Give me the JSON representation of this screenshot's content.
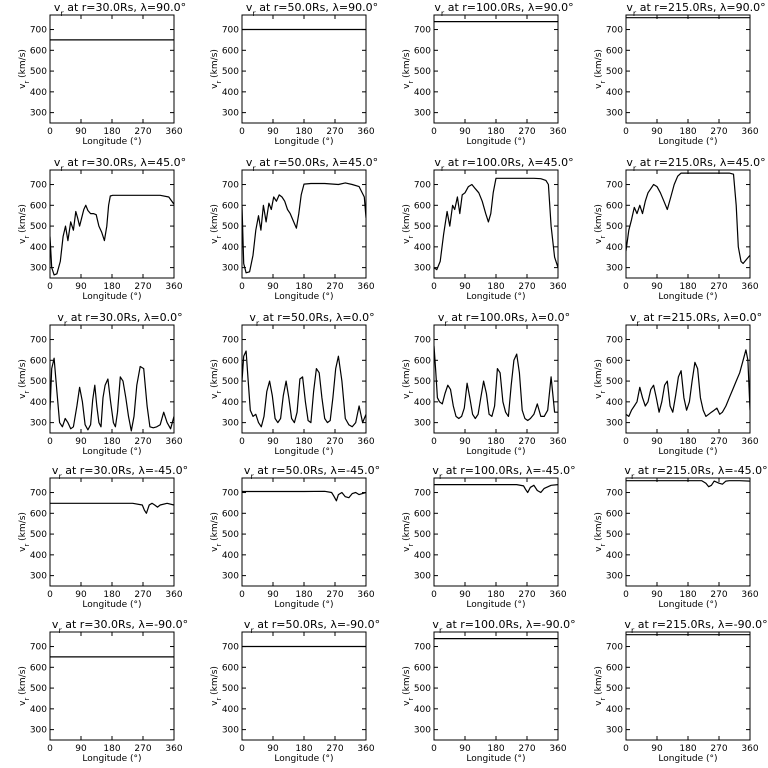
{
  "axes": {
    "xlabel": "Longitude (°)",
    "ylabel": "v_r (km/s)",
    "xlim": [
      0,
      360
    ],
    "ylim": [
      250,
      770
    ],
    "xticks": [
      0,
      90,
      180,
      270,
      360
    ],
    "yticks": [
      300,
      400,
      500,
      600,
      700
    ]
  },
  "chart_data": [
    {
      "type": "line",
      "title": "vr at r=30.0Rs, λ=90.0°",
      "x": [
        0,
        360
      ],
      "y": [
        650,
        650
      ]
    },
    {
      "type": "line",
      "title": "vr at r=50.0Rs, λ=90.0°",
      "x": [
        0,
        360
      ],
      "y": [
        700,
        700
      ]
    },
    {
      "type": "line",
      "title": "vr at r=100.0Rs, λ=90.0°",
      "x": [
        0,
        360
      ],
      "y": [
        738,
        738
      ]
    },
    {
      "type": "line",
      "title": "vr at r=215.0Rs, λ=90.0°",
      "x": [
        0,
        360
      ],
      "y": [
        757,
        757
      ]
    },
    {
      "type": "line",
      "title": "vr at r=30.0Rs, λ=45.0°",
      "x": [
        0,
        5,
        12,
        20,
        30,
        38,
        45,
        52,
        60,
        68,
        75,
        80,
        86,
        92,
        98,
        104,
        110,
        118,
        126,
        134,
        142,
        150,
        158,
        165,
        170,
        175,
        182,
        195,
        230,
        280,
        320,
        345,
        360
      ],
      "y": [
        450,
        300,
        265,
        270,
        330,
        450,
        500,
        430,
        520,
        480,
        570,
        540,
        500,
        540,
        580,
        600,
        575,
        560,
        560,
        555,
        500,
        470,
        430,
        500,
        600,
        645,
        648,
        648,
        648,
        648,
        648,
        640,
        605
      ]
    },
    {
      "type": "line",
      "title": "vr at r=50.0Rs, λ=45.0°",
      "x": [
        0,
        5,
        12,
        22,
        32,
        40,
        48,
        55,
        62,
        70,
        78,
        85,
        92,
        100,
        108,
        116,
        124,
        132,
        140,
        150,
        158,
        165,
        172,
        180,
        200,
        240,
        280,
        300,
        320,
        340,
        355,
        360
      ],
      "y": [
        600,
        320,
        275,
        280,
        360,
        480,
        550,
        480,
        600,
        520,
        610,
        580,
        640,
        620,
        650,
        640,
        620,
        580,
        560,
        520,
        490,
        560,
        650,
        702,
        705,
        705,
        700,
        708,
        700,
        690,
        640,
        540
      ]
    },
    {
      "type": "line",
      "title": "vr at r=100.0Rs, λ=45.0°",
      "x": [
        0,
        8,
        18,
        28,
        38,
        46,
        54,
        60,
        68,
        75,
        82,
        90,
        100,
        110,
        120,
        130,
        140,
        150,
        158,
        165,
        172,
        180,
        210,
        250,
        290,
        310,
        325,
        332,
        340,
        350,
        360
      ],
      "y": [
        300,
        290,
        330,
        460,
        570,
        500,
        600,
        580,
        640,
        560,
        650,
        660,
        690,
        700,
        680,
        660,
        620,
        560,
        520,
        560,
        660,
        730,
        730,
        730,
        730,
        728,
        720,
        700,
        500,
        350,
        300
      ]
    },
    {
      "type": "line",
      "title": "vr at r=215.0Rs, λ=45.0°",
      "x": [
        0,
        8,
        16,
        24,
        32,
        40,
        48,
        56,
        64,
        72,
        80,
        90,
        100,
        110,
        120,
        130,
        140,
        150,
        160,
        180,
        220,
        260,
        300,
        312,
        320,
        326,
        334,
        340,
        350,
        360
      ],
      "y": [
        380,
        480,
        530,
        590,
        560,
        600,
        560,
        620,
        660,
        680,
        700,
        690,
        660,
        620,
        580,
        640,
        700,
        740,
        755,
        755,
        755,
        755,
        755,
        750,
        600,
        400,
        330,
        320,
        340,
        360
      ]
    },
    {
      "type": "line",
      "title": "vr at r=30.0Rs, λ=0.0°",
      "x": [
        0,
        5,
        12,
        20,
        28,
        36,
        44,
        52,
        60,
        68,
        78,
        86,
        94,
        102,
        110,
        118,
        124,
        130,
        136,
        142,
        148,
        154,
        160,
        168,
        176,
        184,
        190,
        196,
        204,
        212,
        220,
        228,
        236,
        244,
        252,
        262,
        272,
        282,
        290,
        300,
        310,
        320,
        330,
        340,
        350,
        360
      ],
      "y": [
        360,
        560,
        610,
        450,
        300,
        280,
        320,
        300,
        270,
        280,
        380,
        470,
        400,
        290,
        265,
        290,
        410,
        480,
        380,
        300,
        280,
        420,
        480,
        510,
        400,
        300,
        280,
        350,
        520,
        500,
        420,
        330,
        260,
        330,
        480,
        570,
        560,
        380,
        280,
        275,
        280,
        290,
        350,
        300,
        270,
        330
      ]
    },
    {
      "type": "line",
      "title": "vr at r=50.0Rs, λ=0.0°",
      "x": [
        0,
        5,
        12,
        18,
        24,
        32,
        40,
        48,
        56,
        64,
        72,
        80,
        88,
        96,
        104,
        112,
        120,
        128,
        136,
        144,
        152,
        160,
        168,
        176,
        184,
        192,
        200,
        208,
        216,
        224,
        232,
        240,
        248,
        256,
        264,
        272,
        280,
        290,
        300,
        310,
        320,
        330,
        340,
        350,
        360
      ],
      "y": [
        500,
        620,
        645,
        500,
        360,
        330,
        340,
        300,
        280,
        330,
        450,
        500,
        430,
        320,
        300,
        320,
        430,
        500,
        420,
        320,
        300,
        350,
        510,
        520,
        400,
        310,
        300,
        450,
        560,
        540,
        420,
        320,
        300,
        310,
        420,
        560,
        620,
        500,
        320,
        290,
        280,
        300,
        380,
        300,
        340
      ]
    },
    {
      "type": "line",
      "title": "vr at r=100.0Rs, λ=0.0°",
      "x": [
        0,
        5,
        10,
        16,
        24,
        32,
        40,
        48,
        56,
        64,
        72,
        80,
        88,
        96,
        104,
        112,
        120,
        128,
        136,
        144,
        152,
        160,
        168,
        176,
        184,
        192,
        200,
        208,
        216,
        224,
        232,
        240,
        248,
        256,
        264,
        272,
        280,
        290,
        300,
        310,
        320,
        330,
        340,
        350,
        360
      ],
      "y": [
        670,
        550,
        420,
        400,
        390,
        440,
        480,
        460,
        380,
        330,
        320,
        330,
        370,
        490,
        420,
        340,
        320,
        340,
        420,
        500,
        440,
        340,
        330,
        380,
        560,
        540,
        400,
        350,
        330,
        480,
        600,
        630,
        540,
        360,
        320,
        310,
        320,
        340,
        390,
        330,
        330,
        360,
        520,
        350,
        350
      ]
    },
    {
      "type": "line",
      "title": "vr at r=215.0Rs, λ=0.0°",
      "x": [
        0,
        8,
        16,
        24,
        32,
        40,
        48,
        56,
        64,
        72,
        80,
        88,
        96,
        104,
        112,
        120,
        128,
        136,
        144,
        152,
        160,
        168,
        176,
        184,
        192,
        200,
        208,
        216,
        224,
        232,
        240,
        248,
        256,
        264,
        272,
        280,
        290,
        300,
        310,
        320,
        330,
        340,
        348,
        354,
        360
      ],
      "y": [
        340,
        330,
        360,
        380,
        400,
        470,
        420,
        380,
        400,
        460,
        480,
        420,
        350,
        400,
        480,
        500,
        380,
        350,
        430,
        520,
        550,
        420,
        360,
        400,
        500,
        590,
        560,
        420,
        360,
        330,
        340,
        350,
        360,
        370,
        340,
        350,
        380,
        420,
        460,
        500,
        540,
        600,
        650,
        600,
        360
      ]
    },
    {
      "type": "line",
      "title": "vr at r=30.0Rs, λ=-45.0°",
      "x": [
        0,
        60,
        120,
        180,
        240,
        268,
        274,
        280,
        288,
        296,
        304,
        312,
        320,
        340,
        360
      ],
      "y": [
        648,
        648,
        648,
        648,
        648,
        640,
        615,
        600,
        640,
        648,
        640,
        630,
        640,
        648,
        640
      ]
    },
    {
      "type": "line",
      "title": "vr at r=50.0Rs, λ=-45.0°",
      "x": [
        0,
        60,
        120,
        180,
        240,
        260,
        266,
        274,
        280,
        290,
        300,
        310,
        320,
        330,
        340,
        360
      ],
      "y": [
        705,
        705,
        705,
        705,
        706,
        700,
        685,
        660,
        690,
        700,
        680,
        675,
        695,
        700,
        690,
        700
      ]
    },
    {
      "type": "line",
      "title": "vr at r=100.0Rs, λ=-45.0°",
      "x": [
        0,
        60,
        120,
        180,
        240,
        260,
        266,
        272,
        280,
        290,
        300,
        310,
        320,
        340,
        360
      ],
      "y": [
        738,
        738,
        738,
        738,
        738,
        732,
        715,
        700,
        725,
        735,
        710,
        700,
        720,
        735,
        738
      ]
    },
    {
      "type": "line",
      "title": "vr at r=215.0Rs, λ=-45.0°",
      "x": [
        0,
        60,
        120,
        180,
        220,
        232,
        240,
        248,
        256,
        270,
        280,
        290,
        300,
        330,
        360
      ],
      "y": [
        757,
        757,
        757,
        757,
        757,
        745,
        728,
        735,
        755,
        745,
        740,
        755,
        757,
        757,
        755
      ]
    },
    {
      "type": "line",
      "title": "vr at r=30.0Rs, λ=-90.0°",
      "x": [
        0,
        360
      ],
      "y": [
        650,
        650
      ]
    },
    {
      "type": "line",
      "title": "vr at r=50.0Rs, λ=-90.0°",
      "x": [
        0,
        360
      ],
      "y": [
        700,
        700
      ]
    },
    {
      "type": "line",
      "title": "vr at r=100.0Rs, λ=-90.0°",
      "x": [
        0,
        360
      ],
      "y": [
        738,
        738
      ]
    },
    {
      "type": "line",
      "title": "vr at r=215.0Rs, λ=-90.0°",
      "x": [
        0,
        360
      ],
      "y": [
        757,
        757
      ]
    }
  ]
}
